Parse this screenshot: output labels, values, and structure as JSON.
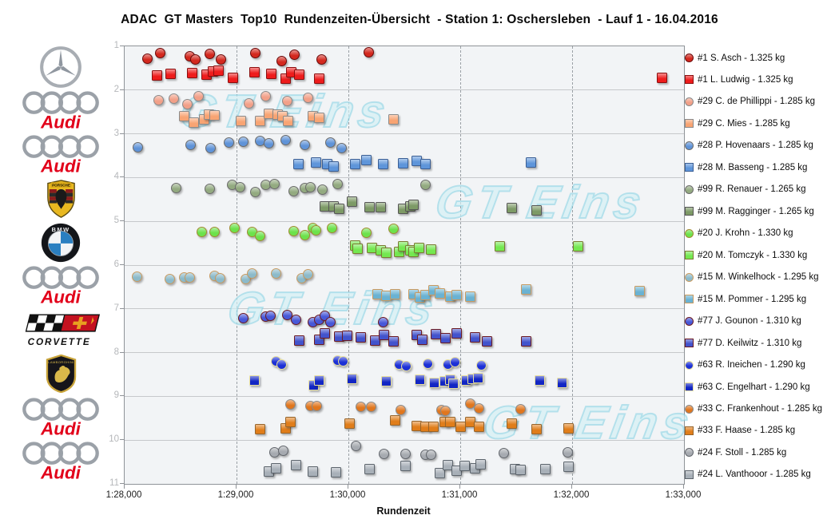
{
  "chart_data": {
    "type": "scatter",
    "title": "ADAC  GT Masters  Top10  Rundenzeiten-Übersicht  - Station 1: Oschersleben  - Lauf 1 - 16.04.2016",
    "xlabel": "Rundenzeit",
    "x_ticks": [
      "1:28,000",
      "1:29,000",
      "1:30,000",
      "1:31,000",
      "1:32,000",
      "1:33,000"
    ],
    "x_tick_times_s": [
      88,
      89,
      90,
      91,
      92,
      93
    ],
    "x_range_seconds": [
      88,
      93
    ],
    "y_tick_labels": [
      "1",
      "2",
      "3",
      "4",
      "5",
      "6",
      "7",
      "8",
      "9",
      "10",
      "11"
    ],
    "grid": "horizontal-solid, vertical-dashed",
    "legend_position": "right",
    "watermark": "GT Eins",
    "teams": [
      {
        "position_band": 1,
        "brand": "Mercedes-Benz"
      },
      {
        "position_band": 2,
        "brand": "Audi"
      },
      {
        "position_band": 3,
        "brand": "Audi"
      },
      {
        "position_band": 4,
        "brand": "Porsche"
      },
      {
        "position_band": 5,
        "brand": "BMW"
      },
      {
        "position_band": 6,
        "brand": "Audi"
      },
      {
        "position_band": 7,
        "brand": "Corvette"
      },
      {
        "position_band": 8,
        "brand": "Lamborghini"
      },
      {
        "position_band": 9,
        "brand": "Audi"
      },
      {
        "position_band": 10,
        "brand": "Audi"
      }
    ],
    "series": [
      {
        "label": "#1 S. Asch - 1.325 kg",
        "marker": "circle",
        "band": 1,
        "fill": "#d3281e",
        "stroke": "#6b0a0a",
        "times_s": [
          88.2,
          88.32,
          88.58,
          88.63,
          88.76,
          88.86,
          89.17,
          89.4,
          89.52,
          89.76,
          90.18
        ]
      },
      {
        "label": "#1 L. Ludwig - 1.325 kg",
        "marker": "square",
        "band": 1,
        "fill": "#ee1c1c",
        "stroke": "#8a0d0d",
        "times_s": [
          88.29,
          88.41,
          88.6,
          88.73,
          88.79,
          88.84,
          88.97,
          89.16,
          89.31,
          89.44,
          89.49,
          89.56,
          89.74,
          92.8
        ]
      },
      {
        "label": "#29 C. de Phillippi - 1.285 kg",
        "marker": "circle",
        "band": 2,
        "fill": "#f2a088",
        "stroke": "#8a8a8a",
        "times_s": [
          88.3,
          88.44,
          88.56,
          88.66,
          89.11,
          89.26,
          89.45,
          89.64
        ]
      },
      {
        "label": "#29 C. Mies - 1.285 kg",
        "marker": "square",
        "band": 2,
        "fill": "#f8a473",
        "stroke": "#8a8a8a",
        "times_s": [
          88.53,
          88.62,
          88.71,
          88.75,
          88.8,
          89.04,
          89.21,
          89.29,
          89.37,
          89.41,
          89.46,
          89.68,
          89.74,
          90.4
        ]
      },
      {
        "label": "#28 P. Hovenaars - 1.285 kg",
        "marker": "circle",
        "band": 3,
        "fill": "#5f93d8",
        "stroke": "#6b6b6b",
        "times_s": [
          88.12,
          88.59,
          88.77,
          88.93,
          89.06,
          89.21,
          89.29,
          89.44,
          89.61,
          89.84,
          89.94
        ]
      },
      {
        "label": "#28 M. Basseng - 1.285 kg",
        "marker": "square",
        "band": 3,
        "fill": "#5e95da",
        "stroke": "#3a5e94",
        "times_s": [
          89.55,
          89.71,
          89.81,
          89.87,
          90.06,
          90.16,
          90.31,
          90.49,
          90.61,
          90.69,
          91.63
        ]
      },
      {
        "label": "#99 R. Renauer - 1.265 kg",
        "marker": "circle",
        "band": 4,
        "fill": "#93aa80",
        "stroke": "#6b6b6b",
        "times_s": [
          88.46,
          88.76,
          88.96,
          89.03,
          89.17,
          89.26,
          89.34,
          89.51,
          89.61,
          89.66,
          89.77,
          89.9,
          90.69
        ]
      },
      {
        "label": "#99 M. Ragginger - 1.265 kg",
        "marker": "square",
        "band": 4,
        "fill": "#7d9a66",
        "stroke": "#555555",
        "times_s": [
          89.79,
          89.87,
          89.92,
          90.03,
          90.19,
          90.29,
          90.49,
          90.55,
          90.58,
          91.46,
          91.68
        ]
      },
      {
        "label": "#20 J. Krohn - 1.330 kg",
        "marker": "circle",
        "band": 5,
        "fill": "#6ce24b",
        "stroke": "#a08a30",
        "times_s": [
          88.69,
          88.8,
          88.98,
          89.14,
          89.21,
          89.51,
          89.61,
          89.68,
          89.71,
          89.85,
          90.16,
          90.4
        ]
      },
      {
        "label": "#20 M. Tomczyk - 1.330 kg",
        "marker": "square",
        "band": 5,
        "fill": "#74e850",
        "stroke": "#7a7a30",
        "times_s": [
          90.06,
          90.08,
          90.21,
          90.29,
          90.34,
          90.45,
          90.49,
          90.55,
          90.58,
          90.63,
          90.74,
          91.35,
          92.05
        ]
      },
      {
        "label": "#15 M. Winkelhock - 1.295 kg",
        "marker": "circle",
        "band": 6,
        "fill": "#8cbaca",
        "stroke": "#c89a60",
        "times_s": [
          88.11,
          88.4,
          88.53,
          88.58,
          88.8,
          88.85,
          89.08,
          89.14,
          89.35,
          89.58,
          89.64
        ]
      },
      {
        "label": "#15 M. Pommer - 1.295 kg",
        "marker": "square",
        "band": 6,
        "fill": "#6ab2d2",
        "stroke": "#c89a60",
        "times_s": [
          90.26,
          90.34,
          90.42,
          90.58,
          90.64,
          90.69,
          90.76,
          90.82,
          90.91,
          90.97,
          91.09,
          91.59,
          92.6
        ]
      },
      {
        "label": "#77 J. Gounon - 1.310 kg",
        "marker": "circle",
        "band": 7,
        "fill": "#4758d8",
        "stroke": "#6b1a22",
        "times_s": [
          89.06,
          89.26,
          89.3,
          89.45,
          89.53,
          89.68,
          89.74,
          89.79,
          89.84,
          90.31
        ]
      },
      {
        "label": "#77 D. Keilwitz - 1.310 kg",
        "marker": "square",
        "band": 7,
        "fill": "#4253cc",
        "stroke": "#6b1a22",
        "times_s": [
          89.56,
          89.74,
          89.79,
          89.92,
          89.99,
          90.11,
          90.24,
          90.32,
          90.4,
          90.61,
          90.66,
          90.78,
          90.87,
          90.97,
          91.13,
          91.24,
          91.59
        ]
      },
      {
        "label": "#63 R. Ineichen - 1.290 kg",
        "marker": "circle",
        "band": 8,
        "fill": "#1c30d6",
        "stroke": "#e8e0a0",
        "times_s": [
          89.35,
          89.4,
          89.9,
          89.95,
          90.45,
          90.52,
          90.71,
          90.89,
          90.95,
          91.19
        ]
      },
      {
        "label": "#63 C. Engelhart - 1.290 kg",
        "marker": "square",
        "band": 8,
        "fill": "#1226c4",
        "stroke": "#e8e0a0",
        "times_s": [
          89.16,
          89.69,
          89.74,
          90.03,
          90.34,
          90.64,
          90.77,
          90.86,
          90.91,
          90.94,
          91.05,
          91.11,
          91.16,
          91.71,
          91.91
        ]
      },
      {
        "label": "#33 C. Frankenhout - 1.285 kg",
        "marker": "circle",
        "band": 9,
        "fill": "#e0761e",
        "stroke": "#8a8a8a",
        "times_s": [
          89.48,
          89.66,
          89.72,
          90.11,
          90.2,
          90.47,
          90.83,
          90.87,
          91.09,
          91.17,
          91.54
        ]
      },
      {
        "label": "#33 F. Haase - 1.285 kg",
        "marker": "square",
        "band": 9,
        "fill": "#e07d1a",
        "stroke": "#96642a",
        "times_s": [
          89.21,
          89.44,
          89.48,
          90.01,
          90.42,
          90.61,
          90.69,
          90.76,
          90.86,
          90.91,
          91.0,
          91.09,
          91.17,
          91.46,
          91.68,
          91.97
        ]
      },
      {
        "label": "#24 F. Stoll - 1.285 kg",
        "marker": "circle",
        "band": 10,
        "fill": "#a6aab0",
        "stroke": "#62666c",
        "times_s": [
          89.34,
          89.42,
          90.07,
          90.32,
          90.51,
          90.69,
          90.74,
          91.39,
          91.96
        ]
      },
      {
        "label": "#24 L. Vanthooor - 1.285 kg",
        "marker": "square",
        "band": 10,
        "fill": "#a8b0b8",
        "stroke": "#5c646c",
        "times_s": [
          89.29,
          89.35,
          89.53,
          89.68,
          89.89,
          90.19,
          90.51,
          90.82,
          90.89,
          90.97,
          91.04,
          91.13,
          91.18,
          91.49,
          91.54,
          91.76,
          91.97
        ]
      }
    ]
  }
}
